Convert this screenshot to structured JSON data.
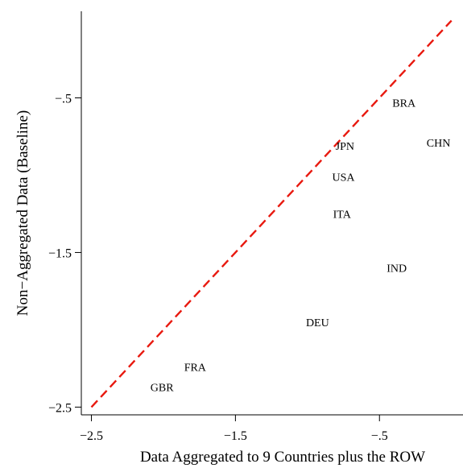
{
  "chart_data": {
    "type": "scatter",
    "title": "",
    "xlabel": "Data Aggregated to 9 Countries plus the ROW",
    "ylabel": "Non−Aggregated Data (Baseline)",
    "xlim": [
      -2.57,
      0.08
    ],
    "ylim": [
      -2.55,
      0.06
    ],
    "x_ticks": [
      -2.5,
      -1.5,
      -0.5
    ],
    "x_tick_labels": [
      "−2.5",
      "−1.5",
      "−.5"
    ],
    "y_ticks": [
      -2.5,
      -1.5,
      -0.5
    ],
    "y_tick_labels": [
      "−2.5",
      "−1.5",
      "−.5"
    ],
    "grid": false,
    "points": [
      {
        "label": "BRA",
        "x": -0.33,
        "y": -0.53
      },
      {
        "label": "CHN",
        "x": -0.09,
        "y": -0.79
      },
      {
        "label": "JPN",
        "x": -0.74,
        "y": -0.81
      },
      {
        "label": "USA",
        "x": -0.75,
        "y": -1.01
      },
      {
        "label": "ITA",
        "x": -0.76,
        "y": -1.25
      },
      {
        "label": "IND",
        "x": -0.38,
        "y": -1.6
      },
      {
        "label": "DEU",
        "x": -0.93,
        "y": -1.95
      },
      {
        "label": "FRA",
        "x": -1.78,
        "y": -2.24
      },
      {
        "label": "GBR",
        "x": -2.01,
        "y": -2.37
      }
    ],
    "reference_line": {
      "style": "dashed",
      "color": "#e8190f",
      "from": [
        -2.5,
        -2.5
      ],
      "to": [
        0.0,
        0.0
      ]
    }
  }
}
